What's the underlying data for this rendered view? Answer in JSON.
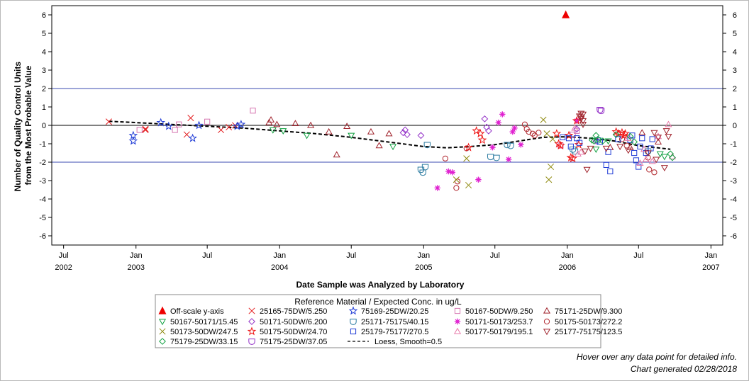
{
  "chart_data": {
    "type": "scatter",
    "title": "",
    "ylabel_lines": [
      "Number of Quality Control Units",
      "from the Most Probable Value"
    ],
    "xlabel": "Date Sample was Analyzed by Laboratory",
    "ylim": [
      -6.5,
      6.5
    ],
    "xlim": [
      "2002-06-01",
      "2007-01-31"
    ],
    "y_ticks": [
      -6,
      -5,
      -4,
      -3,
      -2,
      -1,
      0,
      1,
      2,
      3,
      4,
      5,
      6
    ],
    "x_ticks": [
      {
        "date": "2002-07-01",
        "month": "Jul",
        "year": "2002"
      },
      {
        "date": "2003-01-01",
        "month": "Jan",
        "year": "2003"
      },
      {
        "date": "2003-07-01",
        "month": "Jul",
        "year": ""
      },
      {
        "date": "2004-01-01",
        "month": "Jan",
        "year": "2004"
      },
      {
        "date": "2004-07-01",
        "month": "Jul",
        "year": ""
      },
      {
        "date": "2005-01-01",
        "month": "Jan",
        "year": "2005"
      },
      {
        "date": "2005-07-01",
        "month": "Jul",
        "year": ""
      },
      {
        "date": "2006-01-01",
        "month": "Jan",
        "year": "2006"
      },
      {
        "date": "2006-07-01",
        "month": "Jul",
        "year": ""
      },
      {
        "date": "2007-01-01",
        "month": "Jan",
        "year": "2007"
      }
    ],
    "reference_lines": [
      {
        "y": 2,
        "color": "#3b4bb0"
      },
      {
        "y": -2,
        "color": "#3b4bb0"
      },
      {
        "y": 0,
        "color": "#000000"
      }
    ],
    "grid": false,
    "legend_position": "bottom",
    "legend_title": "Reference Material / Expected Conc. in ug/L",
    "series": [
      {
        "name": "Off-scale y-axis",
        "marker": "filled-triangle",
        "color": "#ee0000",
        "points": [
          [
            "2005-12-28",
            6.0
          ]
        ]
      },
      {
        "name": "25165-75DW/5.250",
        "marker": "x",
        "color": "#e31a1c",
        "points": [
          [
            "2002-10-24",
            0.2
          ],
          [
            "2003-01-25",
            -0.2
          ],
          [
            "2003-01-25",
            -0.25
          ],
          [
            "2003-05-10",
            -0.5
          ],
          [
            "2003-05-20",
            0.4
          ],
          [
            "2003-08-05",
            -0.25
          ],
          [
            "2003-08-25",
            -0.1
          ],
          [
            "2003-09-10",
            0.0
          ]
        ]
      },
      {
        "name": "75169-25DW/20.25",
        "marker": "star",
        "color": "#1f3bd6",
        "points": [
          [
            "2002-12-25",
            -0.55
          ],
          [
            "2002-12-25",
            -0.85
          ],
          [
            "2003-03-05",
            0.15
          ],
          [
            "2003-03-25",
            -0.05
          ],
          [
            "2003-05-25",
            -0.7
          ],
          [
            "2003-06-10",
            0.0
          ],
          [
            "2003-09-15",
            -0.05
          ],
          [
            "2003-09-25",
            0.05
          ]
        ]
      },
      {
        "name": "50167-50DW/9.250",
        "marker": "square",
        "color": "#d675b0",
        "points": [
          [
            "2003-01-10",
            -0.25
          ],
          [
            "2003-04-10",
            -0.25
          ],
          [
            "2003-04-20",
            0.05
          ],
          [
            "2003-07-01",
            0.2
          ],
          [
            "2003-10-25",
            0.8
          ],
          [
            "2005-12-15",
            -1.1
          ],
          [
            "2006-01-15",
            -0.5
          ],
          [
            "2006-01-25",
            -0.3
          ]
        ]
      },
      {
        "name": "75171-25DW/9.300",
        "marker": "triangle",
        "color": "#a0232c",
        "points": [
          [
            "2003-12-05",
            0.15
          ],
          [
            "2003-12-10",
            0.3
          ],
          [
            "2003-12-25",
            0.05
          ],
          [
            "2004-02-10",
            0.1
          ],
          [
            "2004-03-20",
            0.0
          ],
          [
            "2004-05-05",
            -0.35
          ],
          [
            "2004-05-25",
            -1.6
          ],
          [
            "2004-06-20",
            -0.05
          ],
          [
            "2004-08-20",
            -0.35
          ],
          [
            "2004-09-10",
            -1.1
          ],
          [
            "2004-10-05",
            -0.45
          ],
          [
            "2006-04-20",
            -1.2
          ],
          [
            "2006-06-10",
            -1.2
          ],
          [
            "2006-07-10",
            -0.4
          ],
          [
            "2006-08-20",
            -0.9
          ]
        ]
      },
      {
        "name": "50167-50171/15.45",
        "marker": "down-triangle",
        "color": "#10a040",
        "points": [
          [
            "2003-12-15",
            -0.25
          ],
          [
            "2004-01-10",
            -0.3
          ],
          [
            "2004-03-10",
            -0.55
          ],
          [
            "2004-07-01",
            -0.55
          ],
          [
            "2004-10-15",
            -1.15
          ],
          [
            "2006-03-15",
            -1.3
          ],
          [
            "2006-04-15",
            -0.85
          ],
          [
            "2006-08-25",
            -1.55
          ],
          [
            "2006-09-05",
            -1.7
          ]
        ]
      },
      {
        "name": "50171-50DW/6.200",
        "marker": "diamond",
        "color": "#9432c8",
        "points": [
          [
            "2004-11-10",
            -0.4
          ],
          [
            "2004-11-15",
            -0.25
          ],
          [
            "2004-11-20",
            -0.5
          ],
          [
            "2004-12-25",
            -0.55
          ],
          [
            "2005-06-05",
            0.35
          ],
          [
            "2005-06-10",
            -0.1
          ],
          [
            "2005-06-15",
            -0.3
          ],
          [
            "2006-01-25",
            -0.2
          ],
          [
            "2006-03-15",
            -0.85
          ]
        ]
      },
      {
        "name": "25171-75175/40.15",
        "marker": "shield",
        "color": "#2a7aa0",
        "points": [
          [
            "2004-12-25",
            -2.4
          ],
          [
            "2004-12-30",
            -2.55
          ],
          [
            "2005-01-05",
            -2.25
          ],
          [
            "2005-01-10",
            -1.05
          ],
          [
            "2005-06-20",
            -1.7
          ],
          [
            "2005-07-05",
            -1.75
          ],
          [
            "2005-08-01",
            -1.05
          ],
          [
            "2005-08-10",
            -1.1
          ],
          [
            "2006-01-15",
            -1.3
          ],
          [
            "2006-01-20",
            -1.4
          ],
          [
            "2006-03-20",
            -0.8
          ],
          [
            "2006-07-25",
            -1.4
          ]
        ]
      },
      {
        "name": "50171-50173/253.7",
        "marker": "asterisk",
        "color": "#e020d0",
        "points": [
          [
            "2005-02-05",
            -3.4
          ],
          [
            "2005-03-05",
            -2.5
          ],
          [
            "2005-03-15",
            -2.55
          ],
          [
            "2005-05-20",
            -2.95
          ],
          [
            "2005-06-25",
            -1.2
          ],
          [
            "2005-07-10",
            0.15
          ],
          [
            "2005-07-20",
            0.6
          ],
          [
            "2005-08-05",
            -1.85
          ],
          [
            "2005-08-15",
            -0.35
          ],
          [
            "2005-08-20",
            -0.15
          ],
          [
            "2005-09-05",
            -1.05
          ],
          [
            "2006-01-25",
            0.25
          ]
        ]
      },
      {
        "name": "50175-50173/272.2",
        "marker": "circle",
        "color": "#b0252c",
        "points": [
          [
            "2005-02-25",
            -1.8
          ],
          [
            "2005-03-25",
            -3.4
          ],
          [
            "2005-03-28",
            -3.05
          ],
          [
            "2005-04-20",
            -1.25
          ],
          [
            "2005-09-15",
            0.05
          ],
          [
            "2005-09-20",
            -0.2
          ],
          [
            "2005-09-25",
            -0.35
          ],
          [
            "2005-10-05",
            -0.45
          ],
          [
            "2005-10-10",
            -0.55
          ],
          [
            "2005-10-20",
            -0.4
          ],
          [
            "2006-05-20",
            -0.75
          ],
          [
            "2006-06-01",
            -1.1
          ],
          [
            "2006-07-25",
            -1.75
          ],
          [
            "2006-07-28",
            -2.4
          ],
          [
            "2006-08-10",
            -2.55
          ]
        ]
      },
      {
        "name": "50173-50DW/247.5",
        "marker": "x",
        "color": "#8f8a10",
        "points": [
          [
            "2005-03-25",
            -2.95
          ],
          [
            "2005-04-20",
            -1.8
          ],
          [
            "2005-04-25",
            -3.25
          ],
          [
            "2005-11-01",
            0.3
          ],
          [
            "2005-11-10",
            -0.45
          ],
          [
            "2005-11-15",
            -2.95
          ],
          [
            "2005-11-20",
            -2.25
          ],
          [
            "2005-11-25",
            -0.75
          ]
        ]
      },
      {
        "name": "50175-50DW/24.70",
        "marker": "star",
        "color": "#ee1111",
        "points": [
          [
            "2005-04-25",
            -1.2
          ],
          [
            "2005-05-15",
            -0.3
          ],
          [
            "2005-05-25",
            -0.45
          ],
          [
            "2005-05-30",
            -0.8
          ],
          [
            "2005-12-05",
            -0.45
          ],
          [
            "2005-12-10",
            -1.0
          ],
          [
            "2005-12-15",
            -1.1
          ],
          [
            "2006-01-05",
            -0.55
          ],
          [
            "2006-01-10",
            -1.75
          ],
          [
            "2006-01-15",
            -1.8
          ],
          [
            "2006-01-25",
            0.25
          ],
          [
            "2006-01-30",
            -1.05
          ],
          [
            "2006-05-05",
            -0.35
          ],
          [
            "2006-05-10",
            -0.45
          ],
          [
            "2006-05-20",
            -0.4
          ],
          [
            "2006-05-25",
            -0.55
          ],
          [
            "2006-05-28",
            -0.45
          ]
        ]
      },
      {
        "name": "25179-75177/270.5",
        "marker": "square",
        "color": "#1f3bd6",
        "points": [
          [
            "2005-12-20",
            -0.65
          ],
          [
            "2006-01-05",
            -0.7
          ],
          [
            "2006-01-10",
            -1.15
          ],
          [
            "2006-01-25",
            -0.7
          ],
          [
            "2006-02-01",
            -0.95
          ],
          [
            "2006-03-25",
            -0.9
          ],
          [
            "2006-04-10",
            -2.15
          ],
          [
            "2006-04-15",
            -1.45
          ],
          [
            "2006-04-20",
            -2.5
          ],
          [
            "2006-05-10",
            -0.75
          ],
          [
            "2006-06-10",
            -0.8
          ],
          [
            "2006-06-15",
            -0.55
          ],
          [
            "2006-06-20",
            -1.5
          ],
          [
            "2006-06-25",
            -1.9
          ],
          [
            "2006-07-01",
            -2.25
          ],
          [
            "2006-07-05",
            -1.15
          ],
          [
            "2006-07-10",
            -0.7
          ],
          [
            "2006-07-20",
            -1.5
          ],
          [
            "2006-08-01",
            -1.25
          ],
          [
            "2006-08-05",
            -0.75
          ]
        ]
      },
      {
        "name": "50177-50179/195.1",
        "marker": "triangle",
        "color": "#e878a8",
        "points": [
          [
            "2006-01-20",
            -0.15
          ],
          [
            "2006-01-28",
            -1.55
          ],
          [
            "2006-02-05",
            -1.45
          ],
          [
            "2006-06-05",
            -0.7
          ],
          [
            "2006-07-05",
            -2.05
          ],
          [
            "2006-07-15",
            -1.3
          ],
          [
            "2006-07-20",
            -1.85
          ],
          [
            "2006-08-05",
            -1.95
          ],
          [
            "2006-08-20",
            -0.6
          ],
          [
            "2006-09-15",
            0.05
          ],
          [
            "2006-09-25",
            -1.7
          ]
        ]
      },
      {
        "name": "25177-75175/123.5",
        "marker": "down-triangle",
        "color": "#a0232c",
        "points": [
          [
            "2006-02-01",
            0.5
          ],
          [
            "2006-02-05",
            0.65
          ],
          [
            "2006-02-05",
            0.45
          ],
          [
            "2006-02-05",
            0.35
          ],
          [
            "2006-02-10",
            0.25
          ],
          [
            "2006-02-10",
            0.6
          ],
          [
            "2006-02-10",
            0.05
          ],
          [
            "2006-02-15",
            -1.4
          ],
          [
            "2006-02-20",
            -2.4
          ],
          [
            "2006-03-01",
            -1.25
          ],
          [
            "2006-04-10",
            -1.25
          ],
          [
            "2006-05-15",
            -1.15
          ],
          [
            "2006-06-05",
            -1.35
          ],
          [
            "2006-07-25",
            -1.5
          ],
          [
            "2006-08-10",
            -0.4
          ],
          [
            "2006-08-15",
            -1.85
          ],
          [
            "2006-08-20",
            -0.65
          ],
          [
            "2006-09-05",
            -2.3
          ],
          [
            "2006-09-10",
            -0.3
          ],
          [
            "2006-09-15",
            -0.6
          ]
        ]
      },
      {
        "name": "75179-25DW/33.15",
        "marker": "diamond",
        "color": "#10a040",
        "points": [
          [
            "2006-03-10",
            -0.85
          ],
          [
            "2006-03-15",
            -0.55
          ],
          [
            "2006-03-20",
            -0.75
          ],
          [
            "2006-04-01",
            -0.85
          ],
          [
            "2006-05-05",
            -0.5
          ],
          [
            "2006-06-10",
            -0.6
          ],
          [
            "2006-06-20",
            -0.9
          ],
          [
            "2006-09-20",
            -1.55
          ],
          [
            "2006-09-25",
            -1.75
          ],
          [
            "2006-03-05",
            -0.8
          ]
        ]
      },
      {
        "name": "75175-25DW/37.05",
        "marker": "shield",
        "color": "#9432c8",
        "points": [
          [
            "2006-03-25",
            0.85
          ],
          [
            "2006-03-28",
            0.8
          ]
        ]
      }
    ],
    "loess": {
      "name": "Loess, Smooth=0.5",
      "color": "#000000",
      "points": [
        [
          "2002-10-24",
          0.22
        ],
        [
          "2003-01-01",
          0.15
        ],
        [
          "2003-04-01",
          0.05
        ],
        [
          "2003-07-01",
          -0.05
        ],
        [
          "2003-10-01",
          -0.15
        ],
        [
          "2004-01-01",
          -0.3
        ],
        [
          "2004-04-01",
          -0.45
        ],
        [
          "2004-07-01",
          -0.65
        ],
        [
          "2004-10-01",
          -0.9
        ],
        [
          "2005-01-01",
          -1.15
        ],
        [
          "2005-03-01",
          -1.22
        ],
        [
          "2005-05-01",
          -1.15
        ],
        [
          "2005-07-01",
          -1.05
        ],
        [
          "2005-09-01",
          -0.85
        ],
        [
          "2005-11-01",
          -0.65
        ],
        [
          "2006-01-01",
          -0.62
        ],
        [
          "2006-03-01",
          -0.7
        ],
        [
          "2006-05-01",
          -0.85
        ],
        [
          "2006-07-01",
          -1.1
        ],
        [
          "2006-09-20",
          -1.3
        ]
      ]
    }
  },
  "legend_rows": [
    [
      "Off-scale y-axis",
      "25165-75DW/5.250",
      "75169-25DW/20.25",
      "50167-50DW/9.250",
      "75171-25DW/9.300"
    ],
    [
      "50167-50171/15.45",
      "50171-50DW/6.200",
      "25171-75175/40.15",
      "50171-50173/253.7",
      "50175-50173/272.2"
    ],
    [
      "50173-50DW/247.5",
      "50175-50DW/24.70",
      "25179-75177/270.5",
      "50177-50179/195.1",
      "25177-75175/123.5"
    ],
    [
      "75179-25DW/33.15",
      "75175-25DW/37.05",
      "Loess, Smooth=0.5"
    ]
  ],
  "footnotes": {
    "hover": "Hover over any data point for detailed info.",
    "generated": "Chart generated 02/28/2018"
  }
}
